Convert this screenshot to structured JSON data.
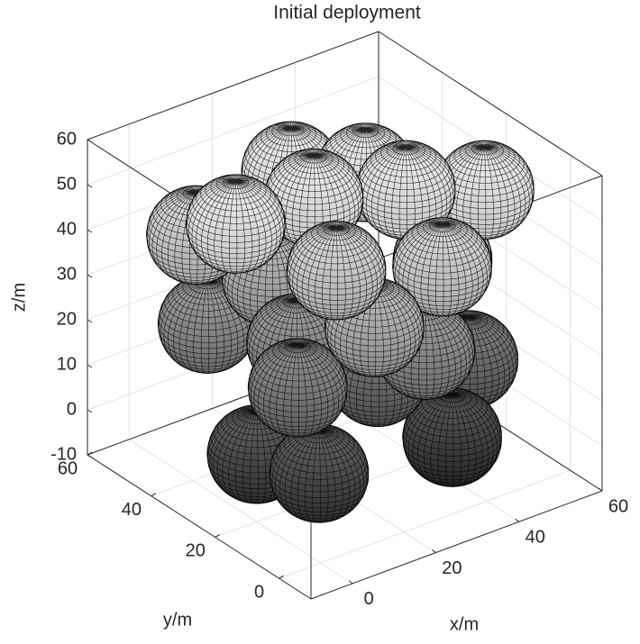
{
  "chart_data": {
    "type": "sphere3d",
    "title": "Initial deployment",
    "x_label": "x/m",
    "y_label": "y/m",
    "z_label": "z/m",
    "x": [
      5,
      0,
      37,
      6,
      2,
      16,
      29,
      44,
      30,
      13,
      -2,
      0,
      16,
      19,
      30,
      32,
      44,
      37,
      12,
      11,
      26
    ],
    "y": [
      7,
      20,
      7,
      15,
      38,
      4,
      5,
      11,
      1,
      12,
      24,
      39,
      23,
      34,
      25,
      15,
      6,
      10,
      31,
      22,
      16
    ],
    "z": [
      5,
      5,
      2,
      20,
      25,
      35,
      25,
      15,
      45,
      45,
      55,
      45,
      55,
      55,
      55,
      55,
      55,
      40,
      35,
      25,
      15
    ],
    "radius": 9.5,
    "colormap": [
      "#1e1e1e",
      "#f2f2f2"
    ],
    "xlim": [
      -10,
      60
    ],
    "ylim": [
      -10,
      60
    ],
    "zlim": [
      -10,
      60
    ],
    "xticks": [
      0,
      20,
      40,
      60
    ],
    "yticks": [
      0,
      20,
      40,
      60
    ],
    "zticks": [
      -10,
      0,
      10,
      20,
      30,
      40,
      50,
      60
    ],
    "grid": true
  }
}
